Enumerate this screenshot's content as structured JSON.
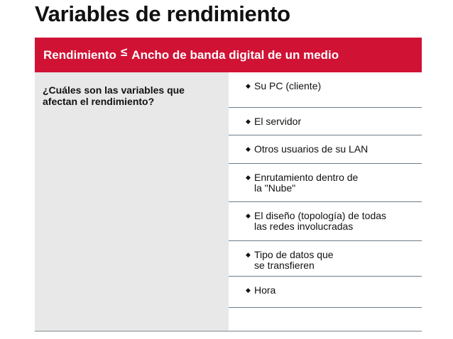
{
  "slide": {
    "title": "Variables de rendimiento",
    "banner": {
      "left": "Rendimiento",
      "symbol": "≤",
      "right": "Ancho de banda digital de un medio"
    },
    "question": "¿Cuáles son las variables que afectan el rendimiento?",
    "items": [
      "Su PC (cliente)",
      "El servidor",
      "Otros usuarios de su LAN",
      "Enrutamiento dentro de\nla \"Nube\"",
      "El diseño (topología) de todas\nlas redes involucradas",
      "Tipo de datos que\nse transfieren",
      "Hora"
    ],
    "bullet": "◆",
    "colors": {
      "banner": "#d01235",
      "panel": "#e8e8e8",
      "divider": "#6a7d8a"
    }
  }
}
